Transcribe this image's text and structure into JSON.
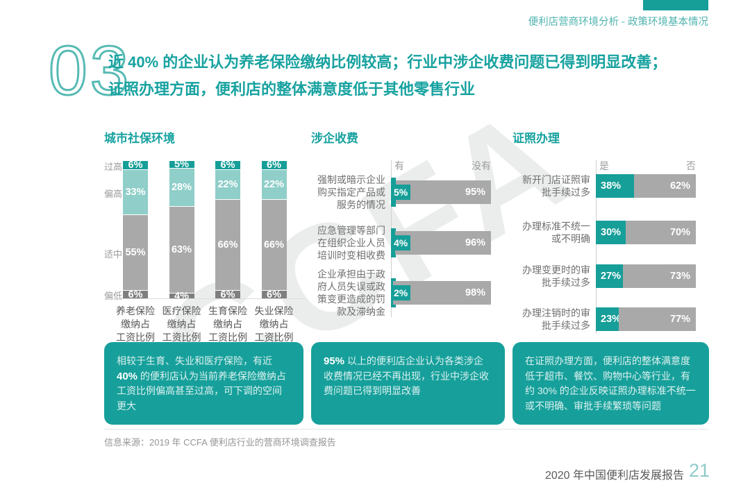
{
  "page": {
    "header_title": "便利店营商环境分析 - 政策环境基本情况",
    "section_number": "03",
    "title_line1": "近 40% 的企业认为养老保险缴纳比例较高；行业中涉企收费问题已得到明显改善；",
    "title_line2": "证照办理方面，便利店的整体满意度低于其他零售行业",
    "watermark": "CCFA",
    "source": "信息来源：2019 年 CCFA 便利店行业的营商环境调查报告",
    "footer_report": "2020 年中国便利店发展报告",
    "page_number": "21"
  },
  "colors": {
    "teal": "#169e98",
    "teal_light": "#8fcec9",
    "gray": "#a9a9a9",
    "gray_dark": "#7f7f7f",
    "title_teal": "#17a2a0"
  },
  "chart_data": [
    {
      "type": "bar",
      "stacked": true,
      "title": "城市社保环境",
      "value_suffix": "%",
      "categories": [
        "养老保险\n缴纳占\n工资比例",
        "医疗保险\n缴纳占\n工资比例",
        "生育保险\n缴纳占\n工资比例",
        "失业保险\n缴纳占\n工资比例"
      ],
      "series": [
        {
          "name": "过高",
          "color": "#169e98",
          "values": [
            6,
            5,
            6,
            6
          ]
        },
        {
          "name": "偏高",
          "color": "#8fcec9",
          "values": [
            33,
            28,
            22,
            22
          ]
        },
        {
          "name": "适中",
          "color": "#a9a9a9",
          "values": [
            55,
            63,
            66,
            66
          ]
        },
        {
          "name": "偏低",
          "color": "#7f7f7f",
          "values": [
            6,
            4,
            6,
            6
          ]
        }
      ]
    },
    {
      "type": "bar",
      "orientation": "horizontal",
      "stacked": true,
      "title": "涉企收费",
      "col_headers": [
        "有",
        "没有"
      ],
      "series_colors": {
        "yes": "#169e98",
        "no": "#a9a9a9"
      },
      "rows": [
        {
          "label": "强制或暗示企业\n购买指定产品或\n服务的情况",
          "yes": 5,
          "no": 95
        },
        {
          "label": "应急管理等部门\n在组织企业人员\n培训时变相收费",
          "yes": 4,
          "no": 96
        },
        {
          "label": "企业承担由于政\n府人员失误或政\n策变更造成的罚\n款及滞纳金",
          "yes": 2,
          "no": 98
        }
      ]
    },
    {
      "type": "bar",
      "orientation": "horizontal",
      "stacked": true,
      "title": "证照办理",
      "col_headers": [
        "是",
        "否"
      ],
      "series_colors": {
        "yes": "#169e98",
        "no": "#a9a9a9"
      },
      "rows": [
        {
          "label": "新开门店证照审\n批手续过多",
          "yes": 38,
          "no": 62
        },
        {
          "label": "办理标准不统一\n或不明确",
          "yes": 30,
          "no": 70
        },
        {
          "label": "办理变更时的审\n批手续过多",
          "yes": 27,
          "no": 73
        },
        {
          "label": "办理注销时的审\n批手续过多",
          "yes": 23,
          "no": 77
        }
      ]
    }
  ],
  "insights": [
    {
      "pre": "相较于生育、失业和医疗保险，有近 ",
      "bold": "40%",
      "post": " 的便利店认为当前养老保险缴纳占工资比例偏高甚至过高，可下调的空间更大"
    },
    {
      "pre": "",
      "bold": "95%",
      "post": " 以上的便利店企业认为各类涉企收费情况已经不再出现，行业中涉企收费问题已得到明显改善"
    },
    {
      "pre": "在证照办理方面，便利店的整体满意度低于超市、餐饮、购物中心等行业，有约 30% 的企业反映证照办理标准不统一或不明确、审批手续繁琐等问题",
      "bold": "",
      "post": ""
    }
  ]
}
